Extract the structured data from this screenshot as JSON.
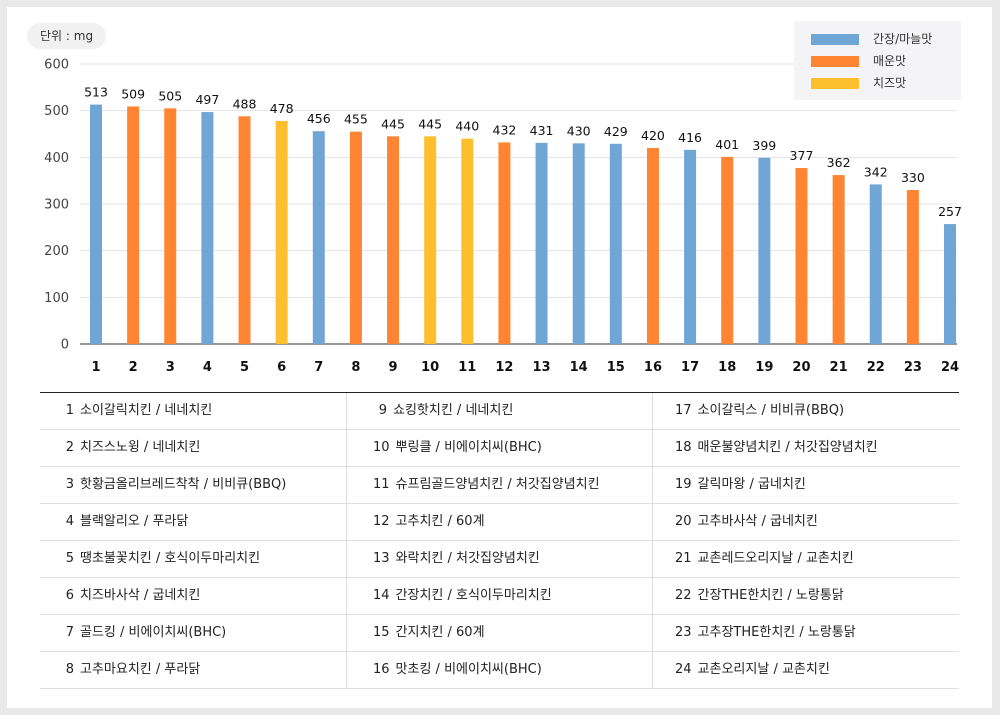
{
  "unit_label": "단위 : mg",
  "colors": {
    "soy": "#6fa6d6",
    "spicy": "#ff8533",
    "cheese": "#fdbf2d",
    "grid": "#e3e3e3",
    "axis": "#555555"
  },
  "legend": [
    {
      "label": "간장/마늘맛",
      "color": "#6fa6d6"
    },
    {
      "label": "매운맛",
      "color": "#ff8533"
    },
    {
      "label": "치즈맛",
      "color": "#fdbf2d"
    }
  ],
  "chart_data": {
    "type": "bar",
    "categories": [
      "1",
      "2",
      "3",
      "4",
      "5",
      "6",
      "7",
      "8",
      "9",
      "10",
      "11",
      "12",
      "13",
      "14",
      "15",
      "16",
      "17",
      "18",
      "19",
      "20",
      "21",
      "22",
      "23",
      "24"
    ],
    "values": [
      513,
      509,
      505,
      497,
      488,
      478,
      456,
      455,
      445,
      445,
      440,
      432,
      431,
      430,
      429,
      420,
      416,
      401,
      399,
      377,
      362,
      342,
      330,
      257
    ],
    "flavor": [
      "soy",
      "spicy",
      "spicy",
      "soy",
      "spicy",
      "cheese",
      "soy",
      "spicy",
      "spicy",
      "cheese",
      "cheese",
      "spicy",
      "soy",
      "soy",
      "soy",
      "spicy",
      "soy",
      "spicy",
      "soy",
      "spicy",
      "spicy",
      "soy",
      "spicy",
      "soy"
    ],
    "yticks": [
      0,
      100,
      200,
      300,
      400,
      500,
      600
    ],
    "ylim": [
      0,
      600
    ],
    "grid": true,
    "legend_position": "top-right",
    "data_labels": true
  },
  "table": {
    "columns": [
      [
        {
          "rank": "1",
          "name": "소이갈릭치킨 / 네네치킨"
        },
        {
          "rank": "2",
          "name": "치즈스노윙 / 네네치킨"
        },
        {
          "rank": "3",
          "name": "핫황금올리브레드착착 / 비비큐(BBQ)"
        },
        {
          "rank": "4",
          "name": "블랙알리오 / 푸라닭"
        },
        {
          "rank": "5",
          "name": "땡초불꽃치킨 / 호식이두마리치킨"
        },
        {
          "rank": "6",
          "name": "치즈바사삭 / 굽네치킨"
        },
        {
          "rank": "7",
          "name": "골드킹 / 비에이치씨(BHC)"
        },
        {
          "rank": "8",
          "name": "고추마요치킨 / 푸라닭"
        }
      ],
      [
        {
          "rank": "9",
          "name": "쇼킹핫치킨 / 네네치킨"
        },
        {
          "rank": "10",
          "name": "뿌링클 / 비에이치씨(BHC)"
        },
        {
          "rank": "11",
          "name": "슈프림골드양념치킨 / 처갓집양념치킨"
        },
        {
          "rank": "12",
          "name": "고추치킨 / 60계"
        },
        {
          "rank": "13",
          "name": "와락치킨 / 처갓집양념치킨"
        },
        {
          "rank": "14",
          "name": "간장치킨 / 호식이두마리치킨"
        },
        {
          "rank": "15",
          "name": "간지치킨 / 60계"
        },
        {
          "rank": "16",
          "name": "맛초킹 / 비에이치씨(BHC)"
        }
      ],
      [
        {
          "rank": "17",
          "name": "소이갈릭스 / 비비큐(BBQ)"
        },
        {
          "rank": "18",
          "name": "매운불양념치킨 / 처갓집양념치킨"
        },
        {
          "rank": "19",
          "name": "갈릭마왕 / 굽네치킨"
        },
        {
          "rank": "20",
          "name": "고추바사삭 / 굽네치킨"
        },
        {
          "rank": "21",
          "name": "교촌레드오리지날 / 교촌치킨"
        },
        {
          "rank": "22",
          "name": "간장THE한치킨 / 노랑통닭"
        },
        {
          "rank": "23",
          "name": "고추장THE한치킨 / 노랑통닭"
        },
        {
          "rank": "24",
          "name": "교촌오리지날 / 교촌치킨"
        }
      ]
    ]
  }
}
